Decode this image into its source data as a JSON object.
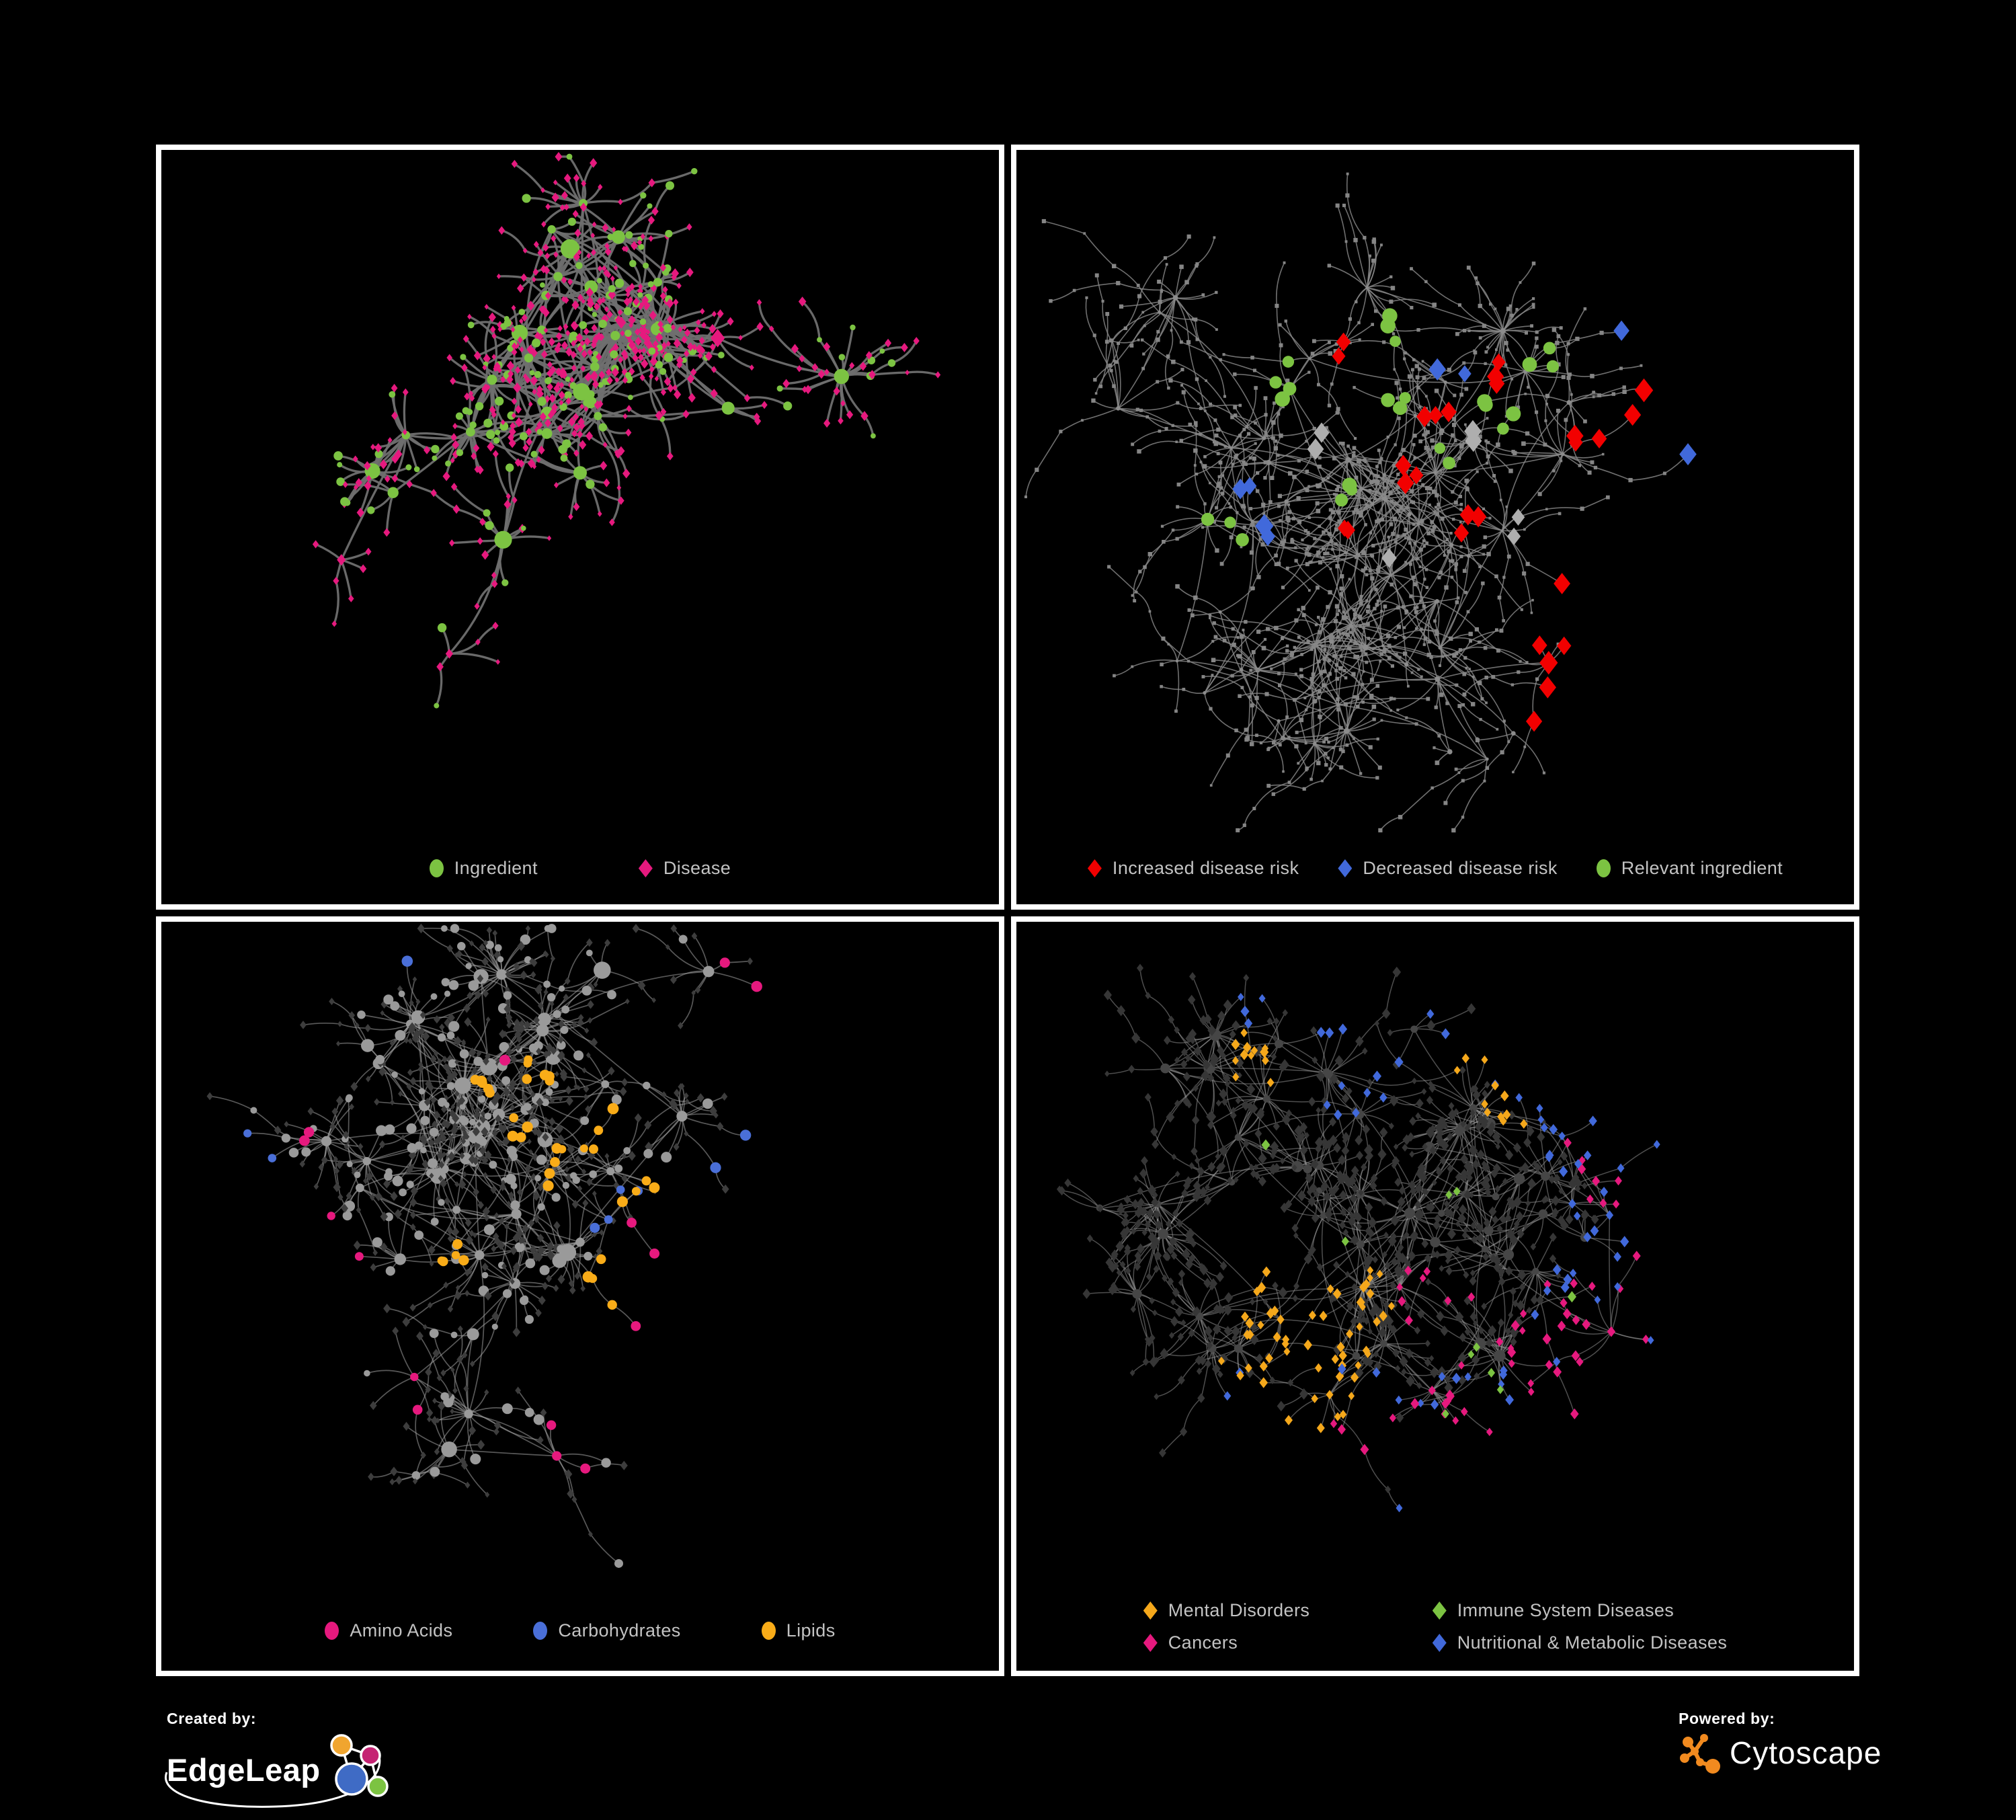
{
  "page": {
    "background": "#000000",
    "frame_color": "#ffffff"
  },
  "panels": [
    {
      "id": "ingredient-disease",
      "legend_layout": "row",
      "legend": [
        {
          "label": "Ingredient",
          "shape": "circle",
          "color": "#7cc342"
        },
        {
          "label": "Disease",
          "shape": "diamond",
          "color": "#e6197e"
        }
      ],
      "network": {
        "seed": 42,
        "hubs": 36,
        "extra_links": 30,
        "leaf_min": 4,
        "leaf_max": 24,
        "chain_prob": 0.25,
        "spread_x": 0.88,
        "spread_y": 0.82,
        "edge": {
          "color": "#6f6f6f",
          "width": 3.3,
          "opacity": 0.95
        },
        "hub_node": {
          "shape": "circle",
          "color": "#7cc342",
          "r_min": 6,
          "r_max": 15
        },
        "hub_alt": {
          "share": 0.18,
          "shape": "diamond",
          "color": "#e6197e"
        },
        "leaf_node": {
          "shape": "diamond",
          "color": "#e6197e",
          "size": 4.8
        },
        "leaf_alt": {
          "share": 0.22,
          "shape": "circle",
          "color": "#7cc342",
          "size": 5.2
        },
        "highlights": []
      }
    },
    {
      "id": "disease-risk",
      "legend_layout": "row",
      "legend": [
        {
          "label": "Increased disease risk",
          "shape": "diamond",
          "color": "#f20000"
        },
        {
          "label": "Decreased disease risk",
          "shape": "diamond",
          "color": "#4169db"
        },
        {
          "label": "Relevant ingredient",
          "shape": "circle",
          "color": "#7cc342"
        }
      ],
      "network": {
        "seed": 7,
        "hubs": 60,
        "extra_links": 18,
        "leaf_min": 3,
        "leaf_max": 18,
        "chain_prob": 0.5,
        "spread_x": 0.94,
        "spread_y": 0.88,
        "edge": {
          "color": "#8b8b8b",
          "width": 1.6,
          "opacity": 0.8
        },
        "hub_node": {
          "shape": "circle",
          "color": "#8c8c8c",
          "r_min": 2.2,
          "r_max": 4.2
        },
        "hub_alt": null,
        "leaf_node": {
          "shape": "square",
          "color": "#858585",
          "size": 2.5
        },
        "leaf_alt": null,
        "highlights": [
          {
            "shape": "diamond",
            "color": "#f20000",
            "size": 12.5,
            "count": 34,
            "foci": [
              [
                0.42,
                0.3
              ],
              [
                0.5,
                0.38
              ],
              [
                0.58,
                0.33
              ],
              [
                0.47,
                0.47
              ],
              [
                0.55,
                0.55
              ],
              [
                0.4,
                0.55
              ],
              [
                0.68,
                0.42
              ],
              [
                0.9,
                0.38
              ],
              [
                0.7,
                0.72
              ],
              [
                0.75,
                0.78
              ]
            ]
          },
          {
            "shape": "diamond",
            "color": "#4169db",
            "size": 12.5,
            "count": 9,
            "foci": [
              [
                0.28,
                0.5
              ],
              [
                0.3,
                0.55
              ],
              [
                0.97,
                0.25
              ],
              [
                0.52,
                0.3
              ]
            ]
          },
          {
            "shape": "diamond",
            "color": "#aeaeae",
            "size": 12,
            "count": 9,
            "foci": [
              [
                0.35,
                0.42
              ],
              [
                0.55,
                0.42
              ],
              [
                0.62,
                0.55
              ],
              [
                0.45,
                0.6
              ]
            ]
          },
          {
            "shape": "circle",
            "color": "#7cc342",
            "size": 9.5,
            "count": 30,
            "foci": [
              [
                0.33,
                0.33
              ],
              [
                0.45,
                0.38
              ],
              [
                0.52,
                0.45
              ],
              [
                0.4,
                0.5
              ],
              [
                0.58,
                0.38
              ],
              [
                0.25,
                0.55
              ],
              [
                0.62,
                0.3
              ],
              [
                0.45,
                0.25
              ]
            ]
          }
        ]
      }
    },
    {
      "id": "ingredient-classes",
      "legend_layout": "row",
      "legend": [
        {
          "label": "Amino Acids",
          "shape": "circle",
          "color": "#e6197e"
        },
        {
          "label": "Carbohydrates",
          "shape": "circle",
          "color": "#4a6fd8"
        },
        {
          "label": "Lipids",
          "shape": "circle",
          "color": "#f9ac18"
        }
      ],
      "network": {
        "seed": 99,
        "hubs": 52,
        "extra_links": 34,
        "leaf_min": 4,
        "leaf_max": 20,
        "chain_prob": 0.3,
        "spread_x": 0.92,
        "spread_y": 0.86,
        "edge": {
          "color": "#a0a0a0",
          "width": 1.7,
          "opacity": 0.55
        },
        "hub_node": {
          "shape": "circle",
          "color": "#9a9a9a",
          "r_min": 6,
          "r_max": 13
        },
        "hub_alt": null,
        "leaf_node": {
          "shape": "diamond",
          "color": "#3d3d3d",
          "size": 4.8
        },
        "leaf_alt": {
          "share": 0.24,
          "shape": "circle",
          "color": "#9a9a9a",
          "size": 6.2
        },
        "highlights": [
          {
            "shape": "circle",
            "color": "#f9ac18",
            "size": 7,
            "count": 50,
            "foci": [
              [
                0.42,
                0.3
              ],
              [
                0.47,
                0.36
              ],
              [
                0.52,
                0.3
              ],
              [
                0.38,
                0.25
              ],
              [
                0.45,
                0.22
              ],
              [
                0.55,
                0.52
              ],
              [
                0.35,
                0.5
              ],
              [
                0.6,
                0.4
              ]
            ]
          },
          {
            "shape": "circle",
            "color": "#e6197e",
            "size": 7,
            "count": 17,
            "foci": [
              [
                0.12,
                0.55
              ],
              [
                0.3,
                0.7
              ],
              [
                0.47,
                0.78
              ],
              [
                0.6,
                0.72
              ],
              [
                0.68,
                0.6
              ],
              [
                0.97,
                0.03
              ],
              [
                0.42,
                0.2
              ],
              [
                0.18,
                0.3
              ]
            ]
          },
          {
            "shape": "circle",
            "color": "#4a6fd8",
            "size": 7,
            "count": 9,
            "foci": [
              [
                0.05,
                0.33
              ],
              [
                0.52,
                0.42
              ],
              [
                0.55,
                0.4
              ],
              [
                0.72,
                0.52
              ],
              [
                0.3,
                0.02
              ]
            ]
          }
        ]
      }
    },
    {
      "id": "disease-classes",
      "legend_layout": "grid",
      "legend": [
        {
          "label": "Mental Disorders",
          "shape": "diamond",
          "color": "#f5a81b"
        },
        {
          "label": "Immune System Diseases",
          "shape": "diamond",
          "color": "#7cc342"
        },
        {
          "label": "Cancers",
          "shape": "diamond",
          "color": "#e6197e"
        },
        {
          "label": "Nutritional & Metabolic Diseases",
          "shape": "diamond",
          "color": "#4169db"
        }
      ],
      "network": {
        "seed": 123,
        "hubs": 58,
        "extra_links": 30,
        "leaf_min": 4,
        "leaf_max": 20,
        "chain_prob": 0.32,
        "spread_x": 0.92,
        "spread_y": 0.88,
        "edge": {
          "color": "#9c9c9c",
          "width": 1.5,
          "opacity": 0.5
        },
        "hub_node": {
          "shape": "circle",
          "color": "#464646",
          "r_min": 5,
          "r_max": 9
        },
        "hub_alt": null,
        "leaf_node": {
          "shape": "diamond",
          "color": "#363636",
          "size": 5.5
        },
        "leaf_alt": null,
        "highlights": [
          {
            "shape": "diamond",
            "color": "#f5a81b",
            "size": 6,
            "count": 95,
            "foci": [
              [
                0.33,
                0.57
              ],
              [
                0.38,
                0.63
              ],
              [
                0.28,
                0.62
              ],
              [
                0.35,
                0.7
              ],
              [
                0.42,
                0.55
              ],
              [
                0.62,
                0.17
              ],
              [
                0.3,
                0.2
              ]
            ]
          },
          {
            "shape": "diamond",
            "color": "#e6197e",
            "size": 6,
            "count": 75,
            "foci": [
              [
                0.62,
                0.62
              ],
              [
                0.68,
                0.68
              ],
              [
                0.57,
                0.7
              ],
              [
                0.73,
                0.6
              ],
              [
                0.93,
                0.22
              ],
              [
                0.5,
                0.55
              ],
              [
                0.45,
                0.93
              ]
            ]
          },
          {
            "shape": "diamond",
            "color": "#4169db",
            "size": 6,
            "count": 85,
            "foci": [
              [
                0.86,
                0.7
              ],
              [
                0.9,
                0.62
              ],
              [
                0.75,
                0.22
              ],
              [
                0.8,
                0.14
              ],
              [
                0.33,
                0.13
              ],
              [
                0.4,
                0.25
              ],
              [
                0.95,
                0.45
              ],
              [
                0.55,
                0.05
              ],
              [
                0.35,
                0.86
              ],
              [
                0.6,
                0.93
              ]
            ]
          },
          {
            "shape": "diamond",
            "color": "#7cc342",
            "size": 6,
            "count": 13,
            "foci": [
              [
                0.52,
                0.4
              ],
              [
                0.4,
                0.47
              ],
              [
                0.63,
                0.8
              ],
              [
                0.3,
                0.33
              ],
              [
                0.77,
                0.77
              ],
              [
                0.55,
                0.63
              ]
            ]
          }
        ]
      }
    }
  ],
  "footer": {
    "created_by_label": "Created by:",
    "edgeleap_name": "EdgeLeap",
    "powered_by_label": "Powered by:",
    "cytoscape_name": "Cytoscape",
    "edgeleap_node_colors": [
      "#f0a52f",
      "#c52373",
      "#3f6bc5",
      "#7cc342"
    ],
    "cytoscape_orange": "#f18a1f"
  }
}
